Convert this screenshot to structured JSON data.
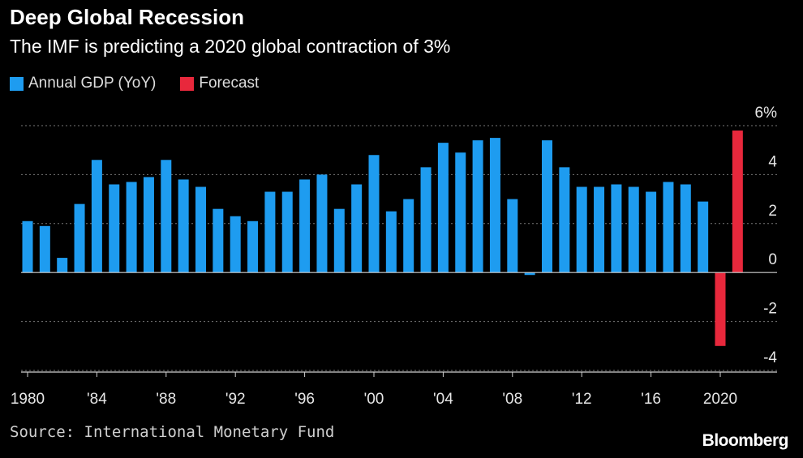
{
  "header": {
    "title": "Deep Global Recession",
    "subtitle": "The IMF is predicting a 2020 global contraction of 3%"
  },
  "footer": {
    "source": "Source: International Monetary Fund",
    "brand": "Bloomberg"
  },
  "colors": {
    "background": "#000000",
    "actual": "#1e9cf0",
    "forecast": "#e8283c",
    "grid": "#777777",
    "axis_text": "#e6e6e6"
  },
  "chart_data": {
    "type": "bar",
    "title": "Deep Global Recession",
    "subtitle": "The IMF is predicting a 2020 global contraction of 3%",
    "xlabel": "",
    "ylabel": "",
    "ylim": [
      -4,
      6
    ],
    "yticks": [
      -4,
      -2,
      0,
      2,
      4,
      6
    ],
    "ytick_labels": [
      "-4",
      "-2",
      "0",
      "2",
      "4",
      "6%"
    ],
    "xticks": [
      1980,
      1984,
      1988,
      1992,
      1996,
      2000,
      2004,
      2008,
      2012,
      2016,
      2020
    ],
    "xtick_labels": [
      "1980",
      "'84",
      "'88",
      "'92",
      "'96",
      "'00",
      "'04",
      "'08",
      "'12",
      "'16",
      "2020"
    ],
    "grid": true,
    "legend_position": "top-left",
    "series": [
      {
        "name": "Annual GDP (YoY)",
        "color": "#1e9cf0",
        "x": [
          1980,
          1981,
          1982,
          1983,
          1984,
          1985,
          1986,
          1987,
          1988,
          1989,
          1990,
          1991,
          1992,
          1993,
          1994,
          1995,
          1996,
          1997,
          1998,
          1999,
          2000,
          2001,
          2002,
          2003,
          2004,
          2005,
          2006,
          2007,
          2008,
          2009,
          2010,
          2011,
          2012,
          2013,
          2014,
          2015,
          2016,
          2017,
          2018,
          2019
        ],
        "values": [
          2.1,
          1.9,
          0.6,
          2.8,
          4.6,
          3.6,
          3.7,
          3.9,
          4.6,
          3.8,
          3.5,
          2.6,
          2.3,
          2.1,
          3.3,
          3.3,
          3.8,
          4.0,
          2.6,
          3.6,
          4.8,
          2.5,
          3.0,
          4.3,
          5.3,
          4.9,
          5.4,
          5.5,
          3.0,
          -0.1,
          5.4,
          4.3,
          3.5,
          3.5,
          3.6,
          3.5,
          3.3,
          3.7,
          3.6,
          2.9
        ]
      },
      {
        "name": "Forecast",
        "color": "#e8283c",
        "x": [
          2020,
          2021
        ],
        "values": [
          -3.0,
          5.8
        ]
      }
    ]
  }
}
